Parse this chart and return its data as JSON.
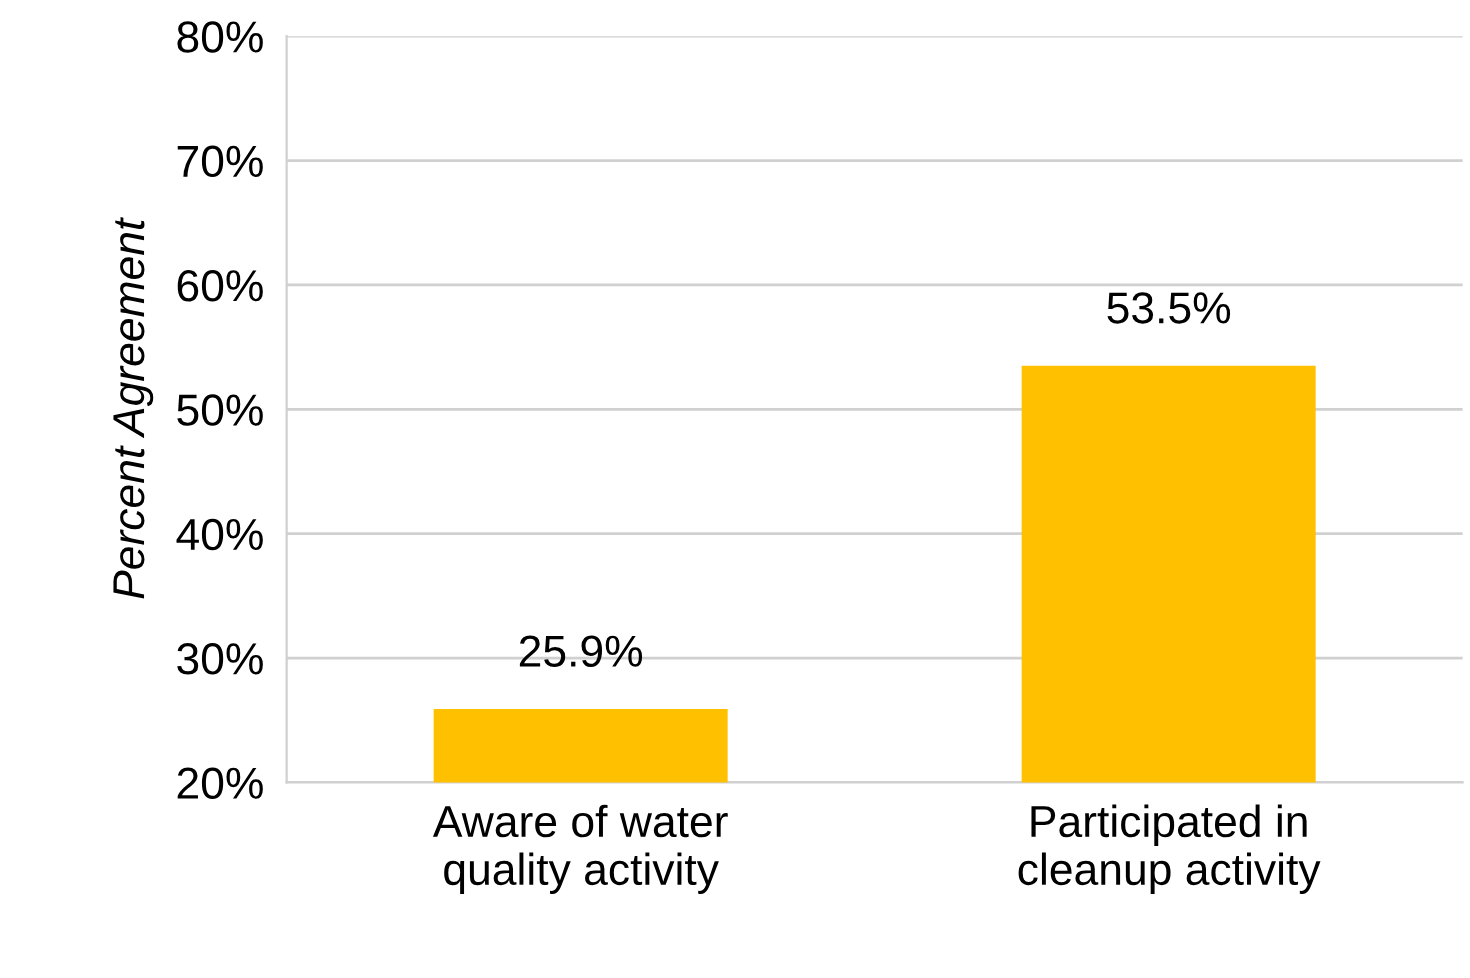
{
  "chart_data": {
    "type": "bar",
    "ylabel": "Percent Agreement",
    "categories": [
      "Aware of water\nquality activity",
      "Participated in\ncleanup activity"
    ],
    "values": [
      25.9,
      53.5
    ],
    "color": "#ffc000",
    "value_labels": [
      "25.9%",
      "53.5%"
    ],
    "ylim": [
      20,
      80
    ],
    "yticks": [
      {
        "value": 20,
        "label": "20%"
      },
      {
        "value": 30,
        "label": "30%"
      },
      {
        "value": 40,
        "label": "40%"
      },
      {
        "value": 50,
        "label": "50%"
      },
      {
        "value": 60,
        "label": "60%"
      },
      {
        "value": 70,
        "label": "70%"
      },
      {
        "value": 80,
        "label": "80%"
      }
    ],
    "grid": "y"
  }
}
